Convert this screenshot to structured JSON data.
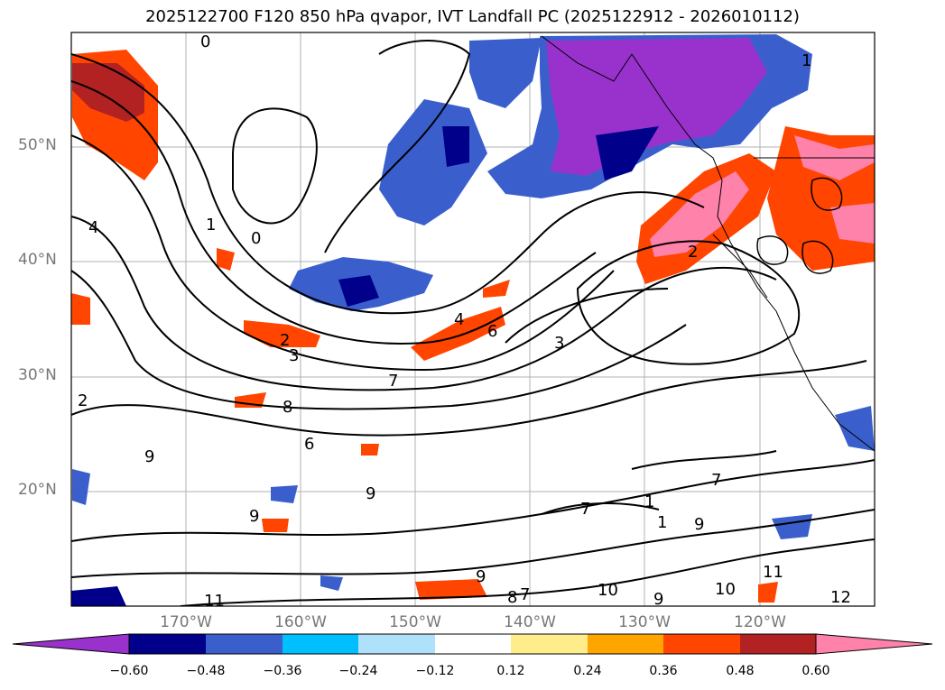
{
  "title": "2025122700 F120 850 hPa qvapor, IVT Landfall PC (2025122912 - 2026010112)",
  "map": {
    "projection": "lat-lon",
    "lon_range": [
      "180°",
      "110°W"
    ],
    "lat_range": [
      "10°N",
      "60°N"
    ],
    "lat_labels": [
      "50°N",
      "40°N",
      "30°N",
      "20°N"
    ],
    "lon_labels": [
      "170°W",
      "160°W",
      "150°W",
      "140°W",
      "130°W",
      "120°W"
    ],
    "contour_labels": [
      "0",
      "1",
      "4",
      "1",
      "0",
      "2",
      "3",
      "4",
      "6",
      "3",
      "7",
      "8",
      "9",
      "6",
      "9",
      "9",
      "7",
      "9",
      "7",
      "9",
      "10",
      "8",
      "7",
      "9",
      "10",
      "11",
      "11",
      "12",
      "2",
      "1",
      "2",
      "1"
    ]
  },
  "colorbar": {
    "ticks": [
      "−0.60",
      "−0.48",
      "−0.36",
      "−0.24",
      "−0.12",
      "0.12",
      "0.24",
      "0.36",
      "0.48",
      "0.60"
    ],
    "colors": [
      "#9932cc",
      "#00008b",
      "#3a5fcd",
      "#00bfff",
      "#afe1fa",
      "#ffffff",
      "#ffec8b",
      "#ffa500",
      "#ff4500",
      "#b22222",
      "#ff82ab"
    ],
    "extend": "both"
  }
}
